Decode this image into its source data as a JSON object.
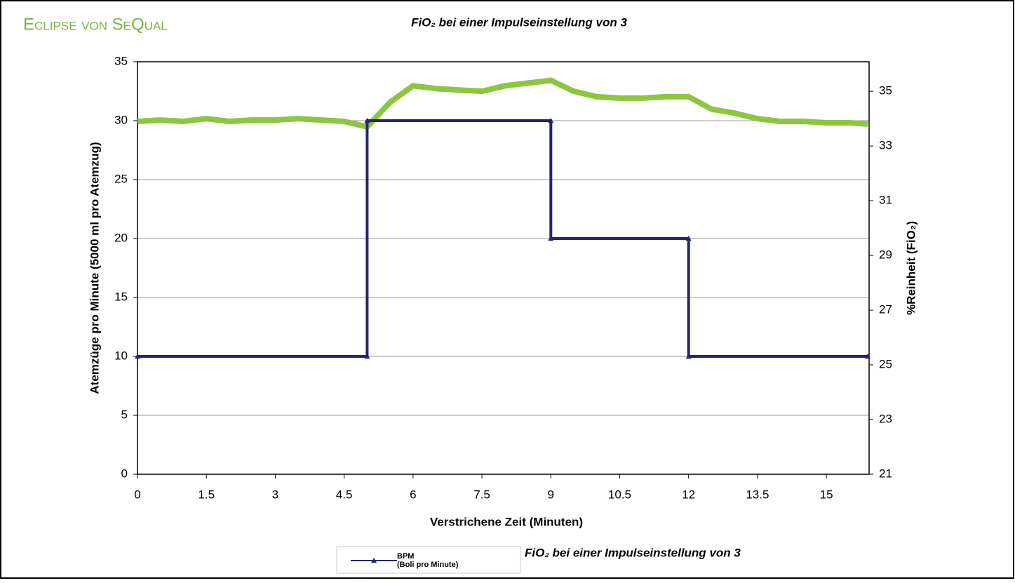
{
  "brand": "Eclipse von SeQual",
  "chart_data": {
    "type": "line",
    "title": "FiO₂ bei einer Impulseinstellung von 3",
    "xlabel": "Verstrichene Zeit (Minuten)",
    "ylabel": "Atemzüge pro Minute (5000 ml pro Atemzug)",
    "y2label": "%Reinheit (FiO₂)",
    "xlim": [
      0,
      15.93
    ],
    "xticks": [
      0,
      1.5,
      3,
      4.5,
      6,
      7.5,
      9,
      10.5,
      12,
      13.5,
      15
    ],
    "ylim": [
      0,
      35
    ],
    "yticks": [
      0,
      5,
      10,
      15,
      20,
      25,
      30,
      35
    ],
    "y2lim": [
      21,
      36.08
    ],
    "y2ticks": [
      21,
      23,
      25,
      27,
      29,
      31,
      33,
      35
    ],
    "grid": true,
    "legend": "bottom",
    "series": [
      {
        "name": "BPM\n(Boli pro Minute)",
        "color": "#25256f",
        "x": [
          0,
          5,
          5,
          9,
          9,
          12,
          12,
          15.9
        ],
        "values": [
          10,
          10,
          30,
          30,
          20,
          20,
          10,
          10
        ]
      },
      {
        "name": "FiO₂ bei einer Impulseinstellung von 3",
        "color": "#8dc63f",
        "axis": "y2",
        "x": [
          0,
          0.5,
          1,
          1.5,
          2,
          2.5,
          3,
          3.5,
          4,
          4.5,
          5,
          5.5,
          6,
          6.5,
          7,
          7.5,
          8,
          8.5,
          9,
          9.5,
          10,
          10.5,
          11,
          11.5,
          12,
          12.5,
          13,
          13.5,
          14,
          14.5,
          15,
          15.5,
          15.9
        ],
        "values": [
          33.9,
          33.95,
          33.9,
          34.0,
          33.9,
          33.95,
          33.95,
          34.0,
          33.95,
          33.9,
          33.7,
          34.6,
          35.2,
          35.1,
          35.05,
          35.0,
          35.2,
          35.3,
          35.4,
          35.0,
          34.8,
          34.75,
          34.75,
          34.8,
          34.8,
          34.35,
          34.2,
          34.0,
          33.9,
          33.9,
          33.85,
          33.85,
          33.8
        ]
      }
    ]
  }
}
